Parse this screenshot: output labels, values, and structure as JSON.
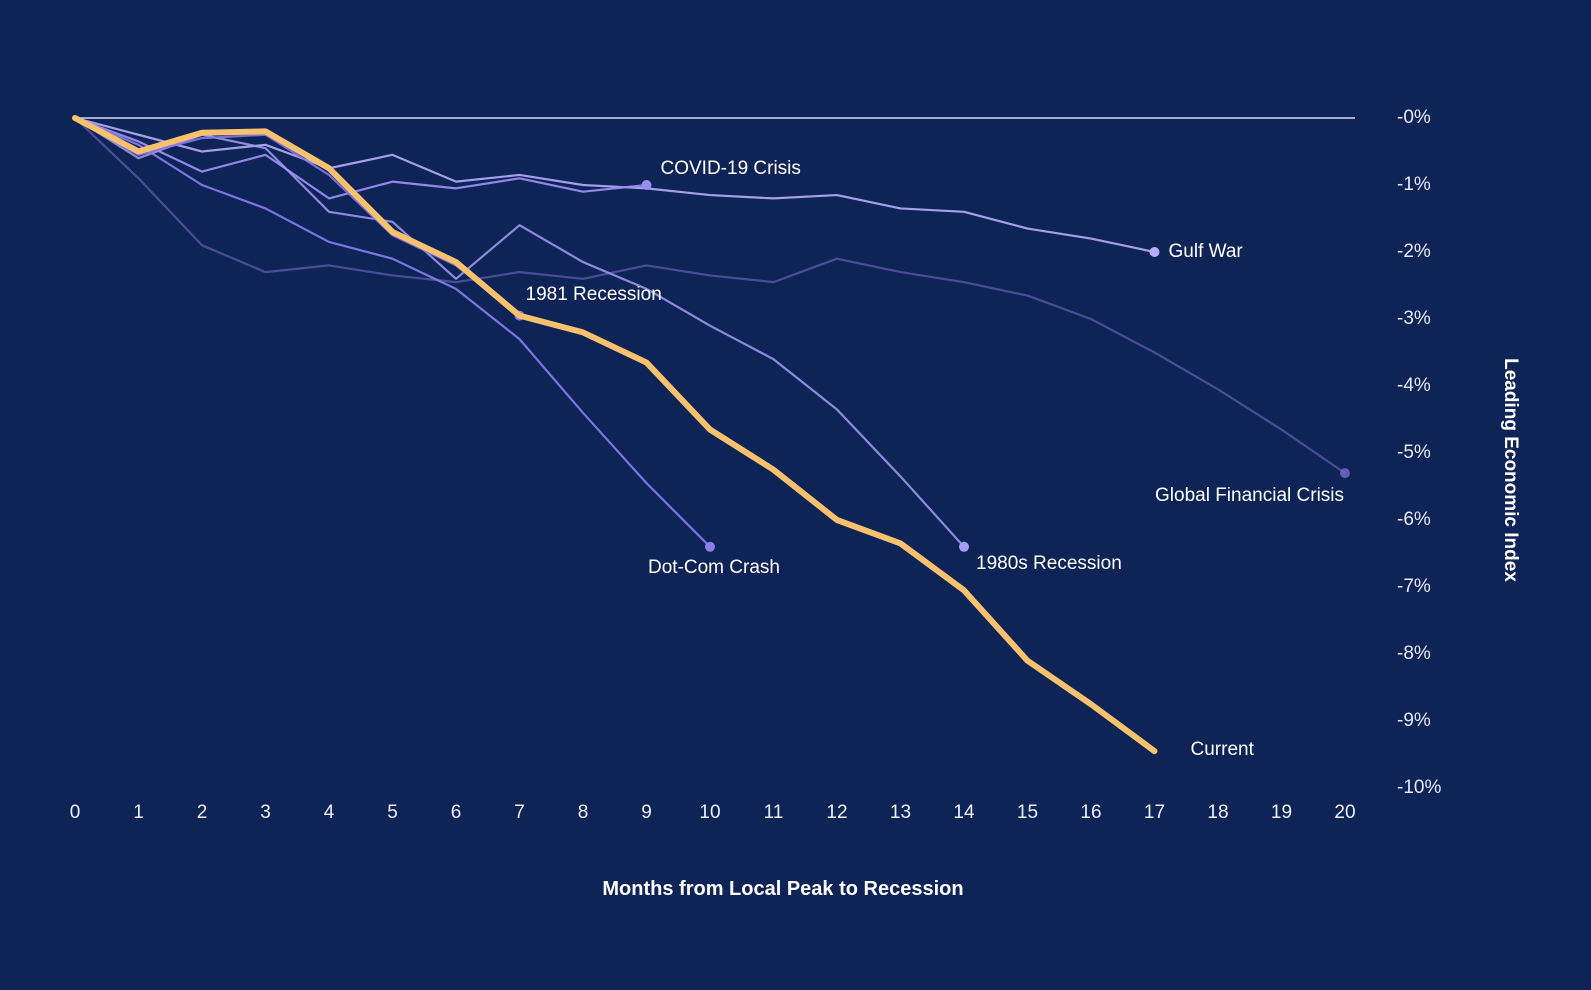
{
  "page": {
    "background": "#0e2456",
    "baseline_color": "#d7d9f2"
  },
  "chart_data": {
    "type": "line",
    "title": "",
    "xlabel": "Months from Local Peak to Recession",
    "ylabel": "Leading Economic Index",
    "xlim": [
      0,
      20
    ],
    "ylim": [
      -10,
      0
    ],
    "grid": "none",
    "legend": "inline-end-labels",
    "x_ticks": [
      "0",
      "1",
      "2",
      "3",
      "4",
      "5",
      "6",
      "7",
      "8",
      "9",
      "10",
      "11",
      "12",
      "13",
      "14",
      "15",
      "16",
      "17",
      "18",
      "19",
      "20"
    ],
    "y_ticks": [
      "-0%",
      "-1%",
      "-2%",
      "-3%",
      "-4%",
      "-5%",
      "-6%",
      "-7%",
      "-8%",
      "-9%",
      "-10%"
    ],
    "series": [
      {
        "name": "Global Financial Crisis",
        "color": "#7e6ed2",
        "opacity": 0.55,
        "stroke_width": 2.2,
        "end_dot": true,
        "label_offset": {
          "dx": -190,
          "dy": 12
        },
        "values": [
          0,
          -0.9,
          -1.9,
          -2.3,
          -2.2,
          -2.35,
          -2.45,
          -2.3,
          -2.4,
          -2.2,
          -2.35,
          -2.45,
          -2.1,
          -2.3,
          -2.45,
          -2.65,
          -3.0,
          -3.5,
          -4.05,
          -4.65,
          -5.3
        ]
      },
      {
        "name": "Gulf War",
        "color": "#b5adf8",
        "opacity": 0.9,
        "stroke_width": 2.2,
        "end_dot": true,
        "label_offset": {
          "dx": 14,
          "dy": -11
        },
        "values": [
          0,
          -0.25,
          -0.5,
          -0.4,
          -0.75,
          -0.55,
          -0.95,
          -0.85,
          -1.0,
          -1.05,
          -1.15,
          -1.2,
          -1.15,
          -1.35,
          -1.4,
          -1.65,
          -1.8,
          -2.0
        ]
      },
      {
        "name": "COVID-19 Crisis",
        "color": "#998df0",
        "opacity": 0.95,
        "stroke_width": 2.2,
        "end_dot": true,
        "label_offset": {
          "dx": 14,
          "dy": -27
        },
        "values": [
          0,
          -0.35,
          -0.8,
          -0.55,
          -1.2,
          -0.95,
          -1.05,
          -0.9,
          -1.1,
          -1.0
        ]
      },
      {
        "name": "1980s Recession",
        "color": "#a59bf4",
        "opacity": 0.85,
        "stroke_width": 2.2,
        "end_dot": true,
        "label_offset": {
          "dx": 12,
          "dy": 6
        },
        "values": [
          0,
          -0.6,
          -0.25,
          -0.45,
          -1.4,
          -1.55,
          -2.4,
          -1.6,
          -2.15,
          -2.55,
          -3.1,
          -3.6,
          -4.35,
          -5.35,
          -6.4
        ]
      },
      {
        "name": "Dot-Com Crash",
        "color": "#8b7df0",
        "opacity": 0.9,
        "stroke_width": 2.2,
        "end_dot": true,
        "label_offset": {
          "dx": -62,
          "dy": 10
        },
        "values": [
          0,
          -0.4,
          -1.0,
          -1.35,
          -1.85,
          -2.1,
          -2.55,
          -3.3,
          -4.4,
          -5.45,
          -6.4
        ]
      },
      {
        "name": "1981 Recession",
        "color": "#8578ea",
        "opacity": 0.9,
        "stroke_width": 2.2,
        "end_dot": true,
        "label_offset": {
          "dx": 6,
          "dy": -32
        },
        "values": [
          0,
          -0.55,
          -0.3,
          -0.25,
          -0.85,
          -1.75,
          -2.2,
          -2.95
        ]
      },
      {
        "name": "Current",
        "color": "#f7c16d",
        "opacity": 1,
        "stroke_width": 6,
        "end_dot": false,
        "label_offset": {
          "dx": 36,
          "dy": -12
        },
        "values": [
          0,
          -0.5,
          -0.22,
          -0.2,
          -0.75,
          -1.7,
          -2.15,
          -2.95,
          -3.2,
          -3.65,
          -4.65,
          -5.25,
          -6.0,
          -6.35,
          -7.05,
          -8.1,
          -8.75,
          -9.45
        ]
      }
    ]
  }
}
